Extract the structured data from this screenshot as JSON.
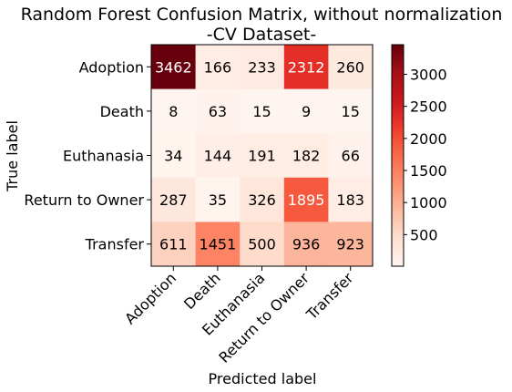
{
  "chart_data": {
    "type": "heatmap",
    "title_line1": "Random Forest Confusion Matrix, without normalization",
    "title_line2": "-CV Dataset-",
    "xlabel": "Predicted label",
    "ylabel": "True label",
    "x_categories": [
      "Adoption",
      "Death",
      "Euthanasia",
      "Return to Owner",
      "Transfer"
    ],
    "y_categories": [
      "Adoption",
      "Death",
      "Euthanasia",
      "Return to Owner",
      "Transfer"
    ],
    "matrix": [
      [
        3462,
        166,
        233,
        2312,
        260
      ],
      [
        8,
        63,
        15,
        9,
        15
      ],
      [
        34,
        144,
        191,
        182,
        66
      ],
      [
        287,
        35,
        326,
        1895,
        183
      ],
      [
        611,
        1451,
        500,
        936,
        923
      ]
    ],
    "colormap": "Reds",
    "colorbar": {
      "min": 8,
      "max": 3462,
      "ticks": [
        500,
        1000,
        1500,
        2000,
        2500,
        3000
      ]
    },
    "x_tick_rotation_deg": 45
  }
}
